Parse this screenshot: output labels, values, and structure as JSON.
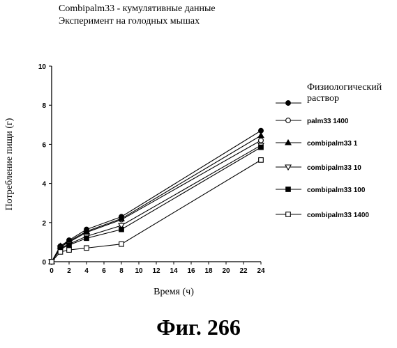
{
  "header": {
    "line1": "Combipalm33 - кумулятивные данные",
    "line2": "Эксперимент на голодных мышах"
  },
  "figure_caption": "Фиг. 266",
  "chart_data": {
    "type": "line",
    "xlabel": "Время (ч)",
    "ylabel": "Потребление пищи (г)",
    "xlim": [
      0,
      24
    ],
    "ylim": [
      0,
      10
    ],
    "xticks": [
      0,
      2,
      4,
      6,
      8,
      10,
      12,
      14,
      16,
      18,
      20,
      22,
      24
    ],
    "yticks": [
      0,
      2,
      4,
      6,
      8,
      10
    ],
    "grid": false,
    "legend_position": "right",
    "x": [
      0,
      1,
      2,
      4,
      8,
      24
    ],
    "series": [
      {
        "name": "Физиологический раствор",
        "marker": "filled-circle",
        "values": [
          0,
          0.8,
          1.1,
          1.65,
          2.3,
          6.7
        ]
      },
      {
        "name": "palm33 1400",
        "marker": "open-circle",
        "values": [
          0,
          0.75,
          1.0,
          1.5,
          2.15,
          6.2
        ]
      },
      {
        "name": "combipalm33 1",
        "marker": "filled-triangle",
        "values": [
          0,
          0.8,
          1.05,
          1.55,
          2.2,
          6.45
        ]
      },
      {
        "name": "combipalm33 10",
        "marker": "open-triangle-down",
        "values": [
          0,
          0.7,
          0.9,
          1.3,
          1.85,
          5.95
        ]
      },
      {
        "name": "combipalm33 100",
        "marker": "filled-square",
        "values": [
          0,
          0.65,
          0.85,
          1.2,
          1.65,
          5.85
        ]
      },
      {
        "name": "combipalm33 1400",
        "marker": "open-square",
        "values": [
          0,
          0.5,
          0.6,
          0.7,
          0.9,
          5.2
        ]
      }
    ]
  }
}
